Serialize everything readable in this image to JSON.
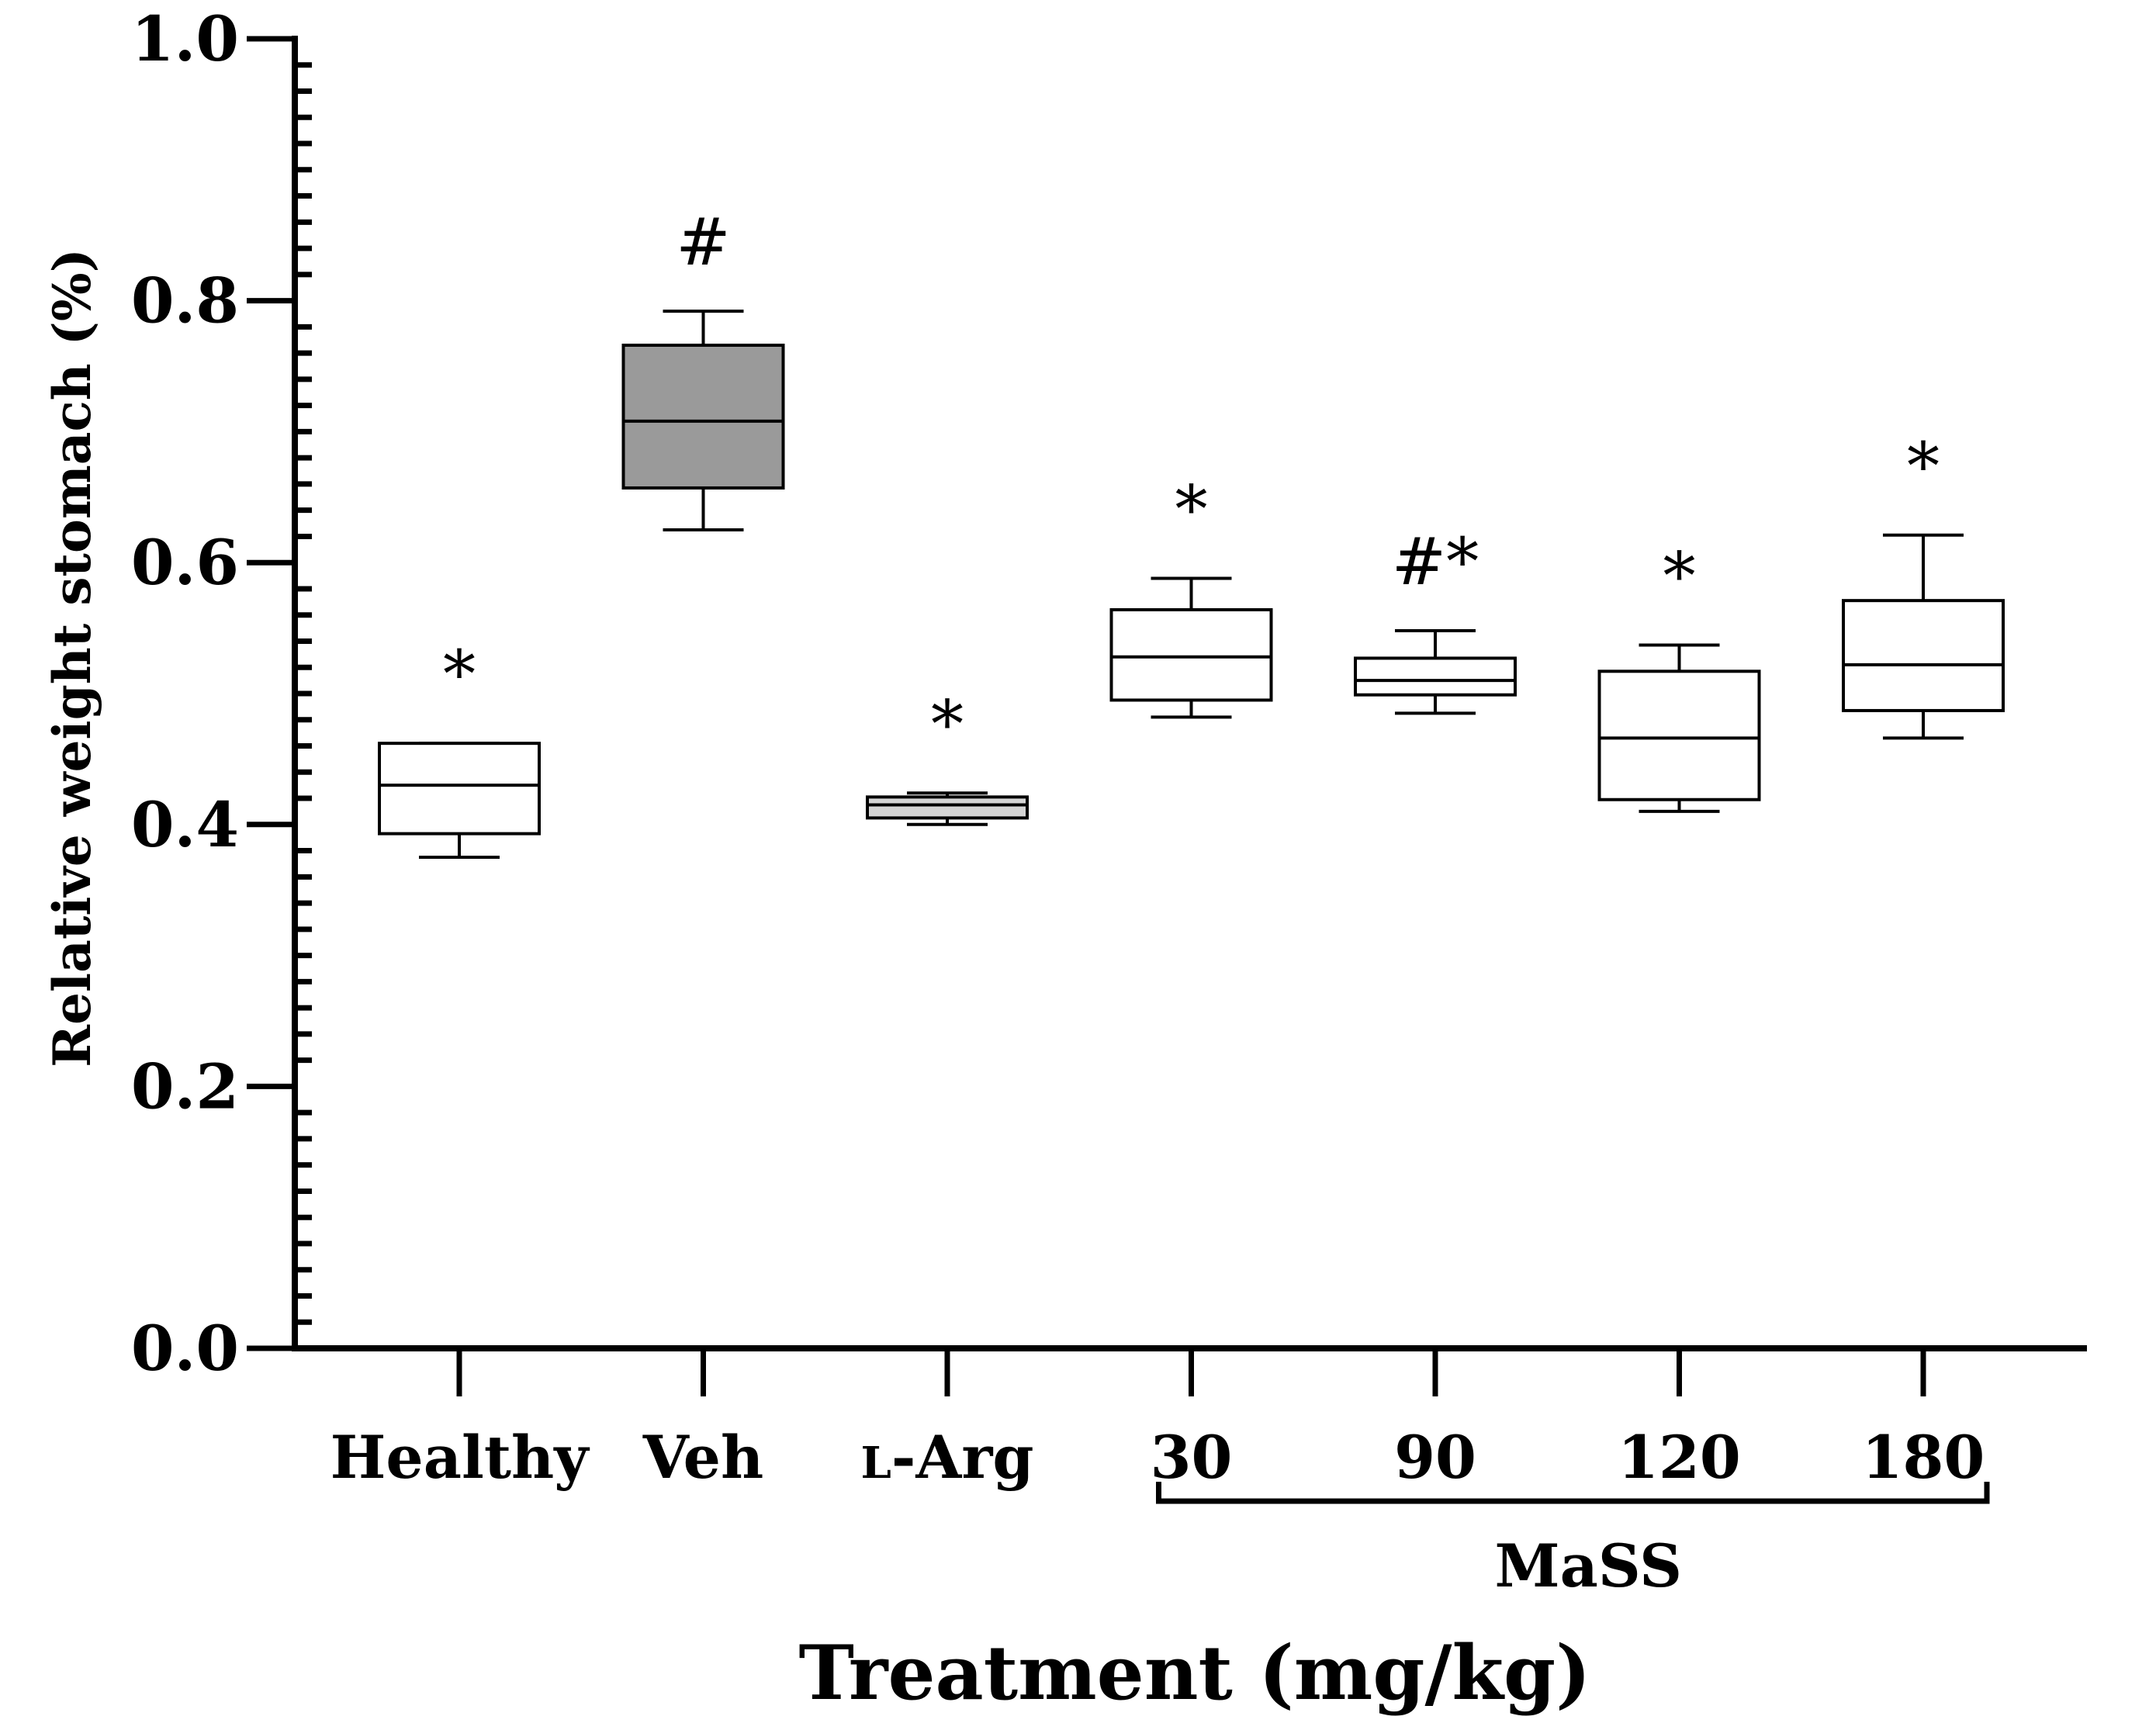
{
  "chart_data": {
    "type": "box",
    "ylabel": "Relative weight stomach (%)",
    "xlabel": "Treatment (mg/kg)",
    "ylim": [
      0,
      1.0
    ],
    "yticks": [
      "0.0",
      "0.2",
      "0.4",
      "0.6",
      "0.8",
      "1.0"
    ],
    "grid": false,
    "group_bracket": {
      "label": "MaSS",
      "from": "30",
      "to": "180"
    },
    "series": [
      {
        "category_prefix": "",
        "category": "Healthy",
        "min": 0.375,
        "q1": 0.393,
        "median": 0.43,
        "q3": 0.462,
        "max": 0.462,
        "annotation": "*",
        "fill": "#ffffff"
      },
      {
        "category_prefix": "",
        "category": "Veh",
        "min": 0.625,
        "q1": 0.657,
        "median": 0.708,
        "q3": 0.766,
        "max": 0.792,
        "annotation": "#",
        "fill": "#9a9a9a"
      },
      {
        "category_prefix": "L",
        "category": "-Arg",
        "min": 0.4,
        "q1": 0.405,
        "median": 0.415,
        "q3": 0.421,
        "max": 0.424,
        "annotation": "*",
        "fill": "#d6d6d6"
      },
      {
        "category_prefix": "",
        "category": "30",
        "min": 0.482,
        "q1": 0.495,
        "median": 0.528,
        "q3": 0.564,
        "max": 0.588,
        "annotation": "*",
        "fill": "#ffffff"
      },
      {
        "category_prefix": "",
        "category": "90",
        "min": 0.485,
        "q1": 0.499,
        "median": 0.51,
        "q3": 0.527,
        "max": 0.548,
        "annotation": "#*",
        "fill": "#ffffff"
      },
      {
        "category_prefix": "",
        "category": "120",
        "min": 0.41,
        "q1": 0.419,
        "median": 0.466,
        "q3": 0.517,
        "max": 0.537,
        "annotation": "*",
        "fill": "#ffffff"
      },
      {
        "category_prefix": "",
        "category": "180",
        "min": 0.466,
        "q1": 0.487,
        "median": 0.522,
        "q3": 0.571,
        "max": 0.621,
        "annotation": "*",
        "fill": "#ffffff"
      }
    ]
  }
}
